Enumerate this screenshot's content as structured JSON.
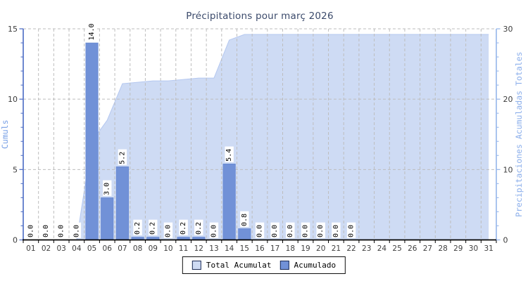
{
  "title": "Précipitations pour març 2026",
  "title_color": "#3b4a6b",
  "legend": {
    "items": [
      {
        "label": "Total Acumulat",
        "color": "#cedbf4"
      },
      {
        "label": "Acumulado",
        "color": "#7191d7"
      }
    ]
  },
  "chart_data": {
    "type": "bar+area",
    "title": "Précipitations pour març 2026",
    "categories": [
      "01",
      "02",
      "03",
      "04",
      "05",
      "06",
      "07",
      "08",
      "09",
      "10",
      "11",
      "12",
      "13",
      "14",
      "15",
      "16",
      "17",
      "18",
      "19",
      "20",
      "21",
      "22",
      "23",
      "24",
      "25",
      "26",
      "27",
      "28",
      "29",
      "30",
      "31"
    ],
    "series": [
      {
        "name": "Total Acumulat",
        "type": "area",
        "axis": "right",
        "color": "#cedbf4",
        "edge": "#b5c8f0",
        "values": [
          0,
          0,
          0,
          0,
          14.0,
          17.0,
          22.2,
          22.4,
          22.6,
          22.6,
          22.8,
          23.0,
          23.0,
          28.4,
          29.2,
          29.2,
          29.2,
          29.2,
          29.2,
          29.2,
          29.2,
          29.2,
          29.2,
          29.2,
          29.2,
          29.2,
          29.2,
          29.2,
          29.2,
          29.2,
          29.2
        ]
      },
      {
        "name": "Acumulado",
        "type": "bar",
        "axis": "left",
        "color": "#7191d7",
        "edge": "#5f82cf",
        "values": [
          0,
          0,
          0,
          0,
          14.0,
          3.0,
          5.2,
          0.2,
          0.2,
          0,
          0.2,
          0.2,
          0,
          5.4,
          0.8,
          0,
          0,
          0,
          0,
          0,
          0,
          0,
          null,
          null,
          null,
          null,
          null,
          null,
          null,
          null,
          null
        ]
      }
    ],
    "value_labels": [
      "0.0",
      "0.0",
      "0.0",
      "0.0",
      "14.0",
      "3.0",
      "5.2",
      "0.2",
      "0.2",
      "0.0",
      "0.2",
      "0.2",
      "0.0",
      "5.4",
      "0.8",
      "0.0",
      "0.0",
      "0.0",
      "0.0",
      "0.0",
      "0.0",
      "0.0",
      null,
      null,
      null,
      null,
      null,
      null,
      null,
      null,
      null
    ],
    "axes": {
      "left": {
        "label": "Cumuls",
        "min": 0,
        "max": 15,
        "majors": [
          0,
          5,
          10,
          15
        ],
        "minor_step": 1,
        "color": "#5573c8",
        "label_color": "#78a0e6",
        "tick_text_color": "#3b3b3b"
      },
      "right": {
        "label": "Precipitaciones Acumuladas Totales",
        "min": 0,
        "max": 30,
        "majors": [
          0,
          10,
          20,
          30
        ],
        "minor_step": 2,
        "color": "#9bb9eb",
        "label_color": "#8cafeb",
        "tick_text_color": "#3b3b3b"
      },
      "x": {
        "color": "#000000",
        "tick_text_color": "#3f3f3f"
      }
    },
    "grid": {
      "color": "#bdbdbd",
      "dash": "4 3",
      "show": true
    },
    "legend_position": "bottom-center"
  }
}
